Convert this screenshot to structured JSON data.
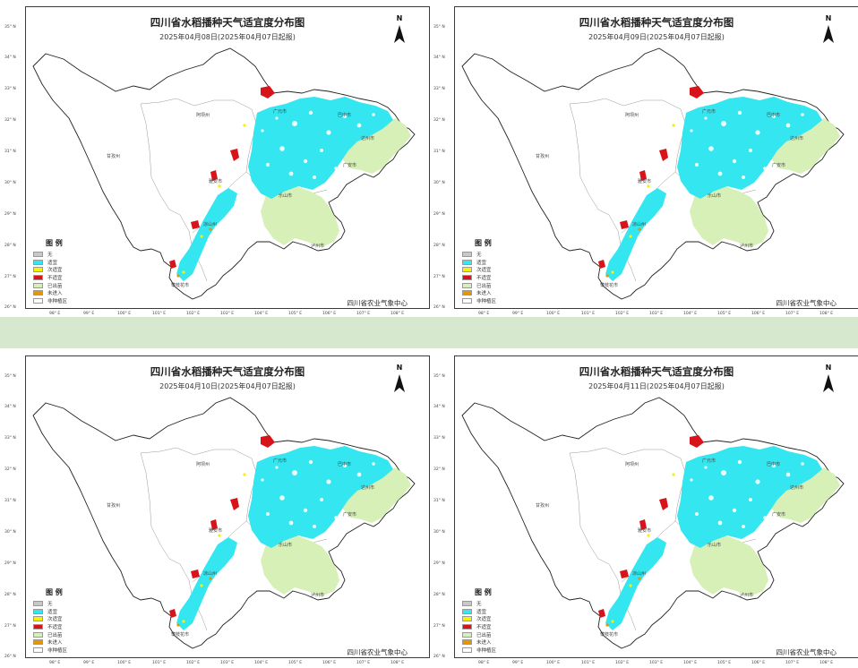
{
  "legend_title": "图 例",
  "legend": [
    {
      "label": "无",
      "color": "#c8c8c8"
    },
    {
      "label": "适宜",
      "color": "#33e6f0"
    },
    {
      "label": "次适宜",
      "color": "#f5f20a"
    },
    {
      "label": "不适宜",
      "color": "#d8141b"
    },
    {
      "label": "已出苗",
      "color": "#d7f0b8"
    },
    {
      "label": "未进入",
      "color": "#e69600"
    },
    {
      "label": "非种植区",
      "color": "#ffffff"
    }
  ],
  "credit": "四川省农业气象中心",
  "latitudes": [
    "35° N",
    "34° N",
    "33° N",
    "32° N",
    "31° N",
    "30° N",
    "29° N",
    "28° N",
    "27° N",
    "26° N"
  ],
  "longitudes": [
    "98° E",
    "99° E",
    "100° E",
    "101° E",
    "102° E",
    "103° E",
    "104° E",
    "105° E",
    "106° E",
    "107° E",
    "108° E"
  ],
  "cities": {
    "aba": "阿坝州",
    "ganzi": "甘孜州",
    "yaan": "雅安市",
    "leshan": "乐山市",
    "luzhou": "泸州市",
    "guangan": "广安市",
    "dazhou": "达州市",
    "bazhong": "巴中市",
    "liangshan": "凉山州",
    "panzhihua": "攀枝花市",
    "mianyang": "绵阳市",
    "guangyuan": "广元市"
  },
  "panels": [
    {
      "title": "四川省水稻播种天气适宜度分布图",
      "subtitle": "2025年04月08日(2025年04月07日起报)"
    },
    {
      "title": "四川省水稻播种天气适宜度分布图",
      "subtitle": "2025年04月09日(2025年04月07日起报)"
    },
    {
      "title": "四川省水稻播种天气适宜度分布图",
      "subtitle": "2025年04月10日(2025年04月07日起报)"
    },
    {
      "title": "四川省水稻播种天气适宜度分布图",
      "subtitle": "2025年04月11日(2025年04月07日起报)"
    }
  ],
  "north_label": "N"
}
